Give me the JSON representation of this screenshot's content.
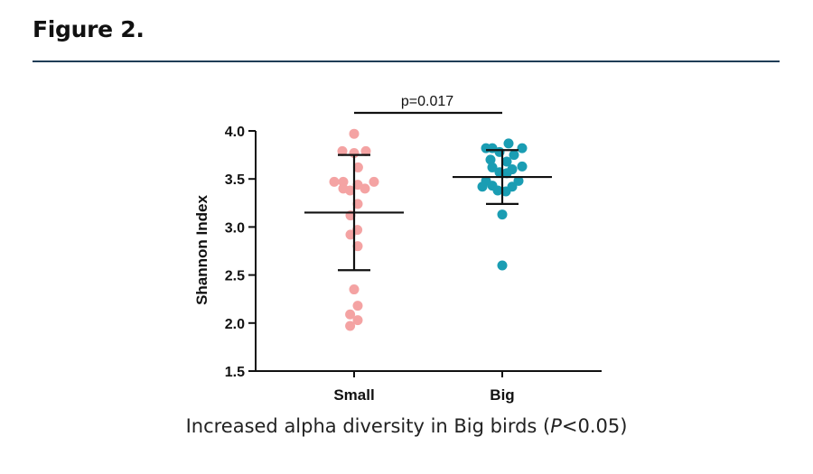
{
  "figure": {
    "heading": "Figure 2."
  },
  "caption": {
    "prefix": "Increased alpha diversity in Big birds (",
    "italic": "P",
    "suffix": "<0.05)"
  },
  "chart_data": {
    "type": "scatter",
    "title": "",
    "xlabel": "",
    "ylabel": "Shannon Index",
    "categories": [
      "Small",
      "Big"
    ],
    "ylim": [
      1.5,
      4.0
    ],
    "yticks": [
      "1.5",
      "2.0",
      "2.5",
      "3.0",
      "3.5",
      "4.0"
    ],
    "grid": false,
    "annotation": "p=0.017",
    "colors": {
      "Small": "#f4a3a3",
      "Big": "#1a9db3",
      "lines": "#111111"
    },
    "series": [
      {
        "category": "Small",
        "mean": 3.15,
        "sd_upper": 3.75,
        "sd_lower": 2.55,
        "points": [
          {
            "y": 3.97,
            "j": 0.0
          },
          {
            "y": 3.79,
            "j": -0.65
          },
          {
            "y": 3.79,
            "j": 0.65
          },
          {
            "y": 3.77,
            "j": 0.0
          },
          {
            "y": 3.62,
            "j": 0.22
          },
          {
            "y": 3.47,
            "j": -1.1
          },
          {
            "y": 3.47,
            "j": -0.6
          },
          {
            "y": 3.47,
            "j": 1.1
          },
          {
            "y": 3.44,
            "j": 0.2
          },
          {
            "y": 3.4,
            "j": -0.6
          },
          {
            "y": 3.4,
            "j": 0.6
          },
          {
            "y": 3.38,
            "j": -0.22
          },
          {
            "y": 3.24,
            "j": 0.2
          },
          {
            "y": 3.12,
            "j": -0.2
          },
          {
            "y": 2.97,
            "j": 0.18
          },
          {
            "y": 2.92,
            "j": -0.2
          },
          {
            "y": 2.8,
            "j": 0.2
          },
          {
            "y": 2.35,
            "j": 0.0
          },
          {
            "y": 2.18,
            "j": 0.2
          },
          {
            "y": 2.09,
            "j": -0.22
          },
          {
            "y": 2.03,
            "j": 0.2
          },
          {
            "y": 1.97,
            "j": -0.22
          }
        ]
      },
      {
        "category": "Big",
        "mean": 3.52,
        "sd_upper": 3.8,
        "sd_lower": 3.24,
        "points": [
          {
            "y": 3.87,
            "j": 0.35
          },
          {
            "y": 3.82,
            "j": -0.9
          },
          {
            "y": 3.82,
            "j": -0.55
          },
          {
            "y": 3.82,
            "j": 1.1
          },
          {
            "y": 3.78,
            "j": -0.15
          },
          {
            "y": 3.75,
            "j": 0.65
          },
          {
            "y": 3.7,
            "j": -0.65
          },
          {
            "y": 3.68,
            "j": 0.25
          },
          {
            "y": 3.63,
            "j": 1.1
          },
          {
            "y": 3.62,
            "j": -0.55
          },
          {
            "y": 3.6,
            "j": 0.55
          },
          {
            "y": 3.57,
            "j": -0.15
          },
          {
            "y": 3.56,
            "j": 0.25
          },
          {
            "y": 3.48,
            "j": -0.9
          },
          {
            "y": 3.48,
            "j": 0.9
          },
          {
            "y": 3.43,
            "j": -0.55
          },
          {
            "y": 3.42,
            "j": 0.55
          },
          {
            "y": 3.42,
            "j": -1.1
          },
          {
            "y": 3.38,
            "j": -0.25
          },
          {
            "y": 3.37,
            "j": 0.2
          },
          {
            "y": 3.13,
            "j": 0.0
          },
          {
            "y": 2.6,
            "j": 0.0
          }
        ]
      }
    ]
  }
}
